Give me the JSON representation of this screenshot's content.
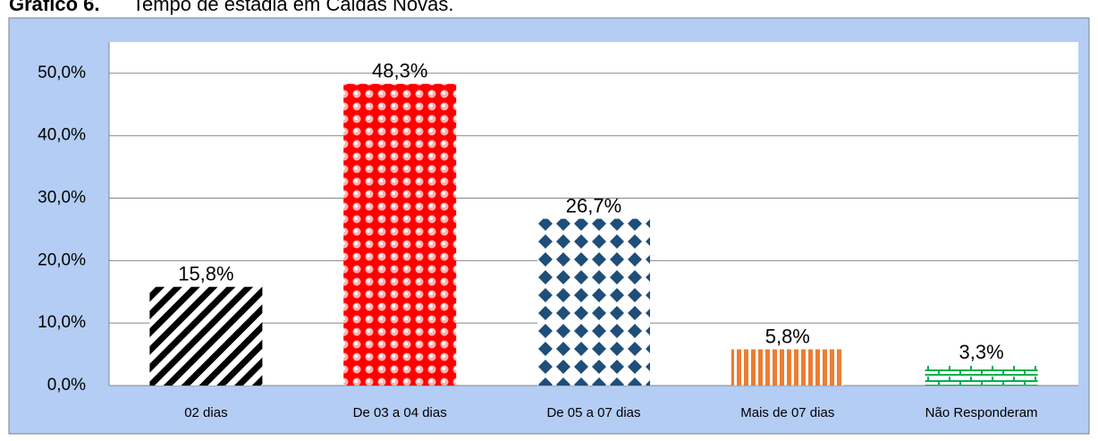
{
  "chart_data": {
    "type": "bar",
    "title_label": "Gráfico 6.",
    "title": "Tempo de estadia em Caldas Novas.",
    "categories": [
      "02 dias",
      "De 03 a 04 dias",
      "De 05 a 07 dias",
      "Mais de 07 dias",
      "Não Responderam"
    ],
    "values": [
      15.8,
      48.3,
      26.7,
      5.8,
      3.3
    ],
    "value_labels": [
      "15,8%",
      "48,3%",
      "26,7%",
      "5,8%",
      "3,3%"
    ],
    "colors": [
      "#000000",
      "#ff0000",
      "#1f4e79",
      "#ed7d31",
      "#00b050"
    ],
    "ylim": [
      0,
      55
    ],
    "yticks": [
      {
        "value": 0,
        "label": "0,0%"
      },
      {
        "value": 10,
        "label": "10,0%"
      },
      {
        "value": 20,
        "label": "20,0%"
      },
      {
        "value": 30,
        "label": "30,0%"
      },
      {
        "value": 40,
        "label": "40,0%"
      },
      {
        "value": 50,
        "label": "50,0%"
      }
    ],
    "grid": true
  }
}
